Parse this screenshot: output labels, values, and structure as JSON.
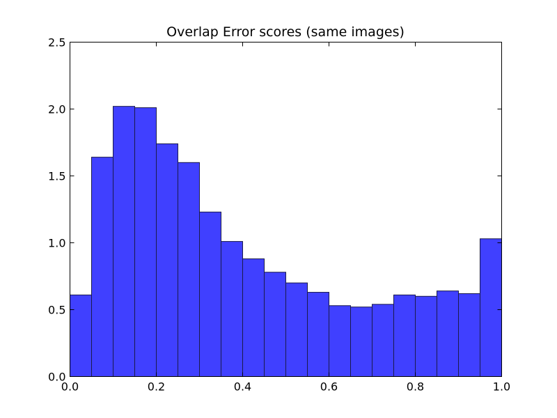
{
  "chart_data": {
    "type": "bar",
    "title": "Overlap Error scores (same images)",
    "xlabel": "",
    "ylabel": "",
    "xlim": [
      0.0,
      1.0
    ],
    "ylim": [
      0.0,
      2.5
    ],
    "bin_edges": [
      0.0,
      0.05,
      0.1,
      0.15,
      0.2,
      0.25,
      0.3,
      0.35,
      0.4,
      0.45,
      0.5,
      0.55,
      0.6,
      0.65,
      0.7,
      0.75,
      0.8,
      0.85,
      0.9,
      0.95,
      1.0
    ],
    "values": [
      0.61,
      1.64,
      2.02,
      2.01,
      1.74,
      1.6,
      1.23,
      1.01,
      0.88,
      0.78,
      0.7,
      0.63,
      0.53,
      0.52,
      0.54,
      0.61,
      0.6,
      0.64,
      0.62,
      1.03
    ],
    "x_ticks": [
      "0.0",
      "0.2",
      "0.4",
      "0.6",
      "0.8",
      "1.0"
    ],
    "y_ticks": [
      "0.0",
      "0.5",
      "1.0",
      "1.5",
      "2.0",
      "2.5"
    ],
    "bar_color": "#4040ff",
    "grid": false
  }
}
